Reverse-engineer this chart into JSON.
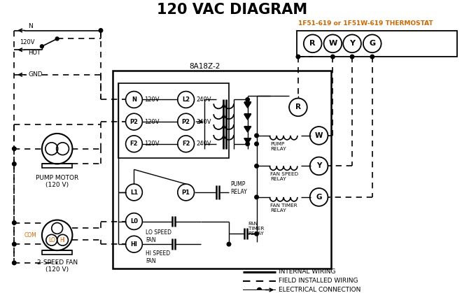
{
  "title": "120 VAC DIAGRAM",
  "bg_color": "#ffffff",
  "lc": "#000000",
  "oc": "#cc6600",
  "thermostat_label": "1F51-619 or 1F51W-619 THERMOSTAT",
  "box_label": "8A18Z-2",
  "leg1": "INTERNAL WIRING",
  "leg2": "FIELD INSTALLED WIRING",
  "leg3": "ELECTRICAL CONNECTION",
  "pump_label1": "PUMP MOTOR",
  "pump_label2": "(120 V)",
  "fan_label1": "2-SPEED FAN",
  "fan_label2": "(120 V)",
  "n_lbl": "N",
  "v120_lbl": "120V",
  "hot_lbl": "HOT",
  "gnd_lbl": "GND",
  "com_lbl": "COM",
  "lo_lbl": "LO",
  "hi_lbl": "HI"
}
